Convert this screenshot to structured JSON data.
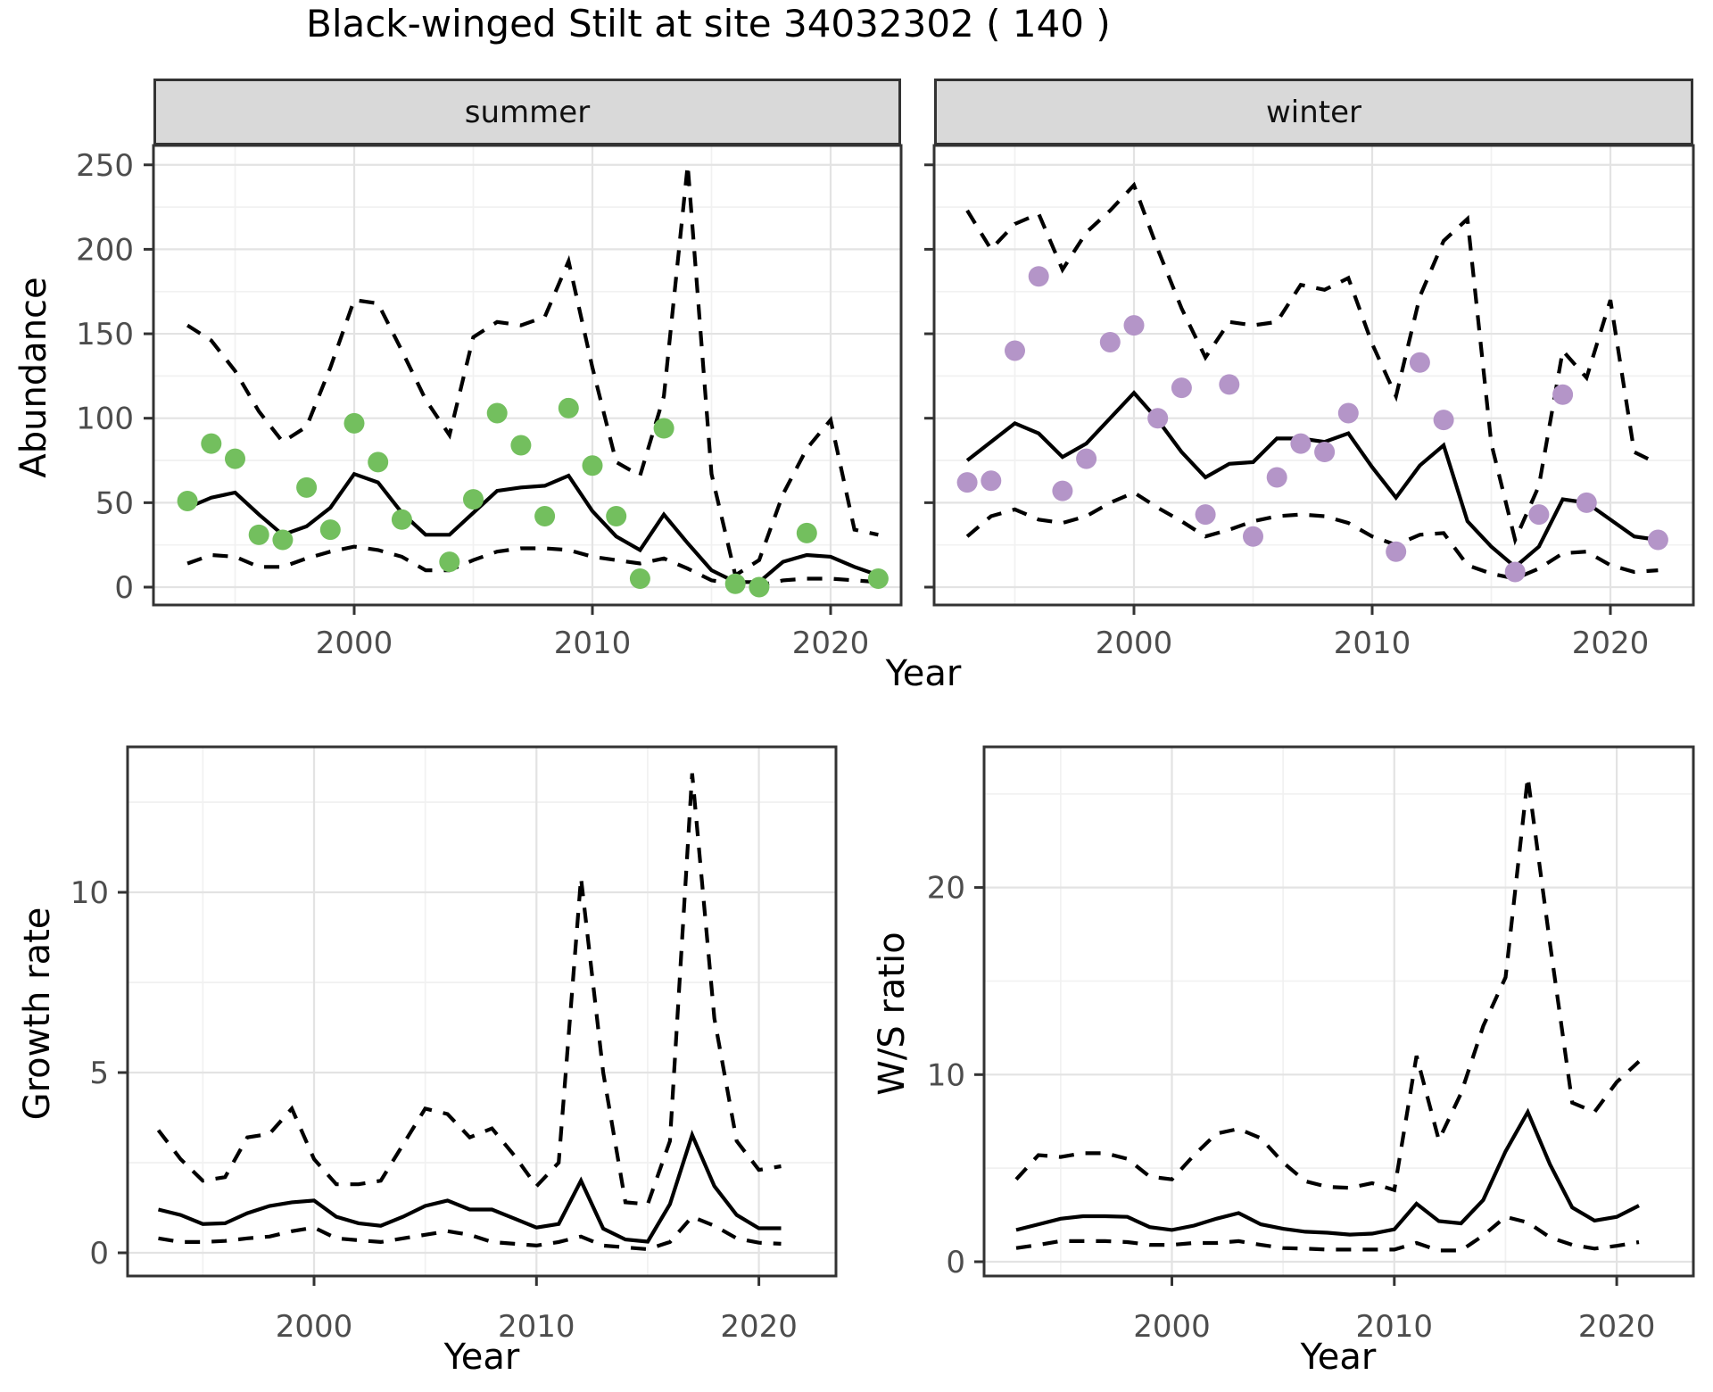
{
  "title": "Black-winged Stilt at site 34032302 ( 140 )",
  "chart_data": [
    {
      "type": "line+scatter",
      "id": "summer",
      "facet_label": "summer",
      "xlabel": "Year",
      "ylabel": "Abundance",
      "x": [
        1993,
        1994,
        1995,
        1996,
        1997,
        1998,
        1999,
        2000,
        2001,
        2002,
        2003,
        2004,
        2005,
        2006,
        2007,
        2008,
        2009,
        2010,
        2011,
        2012,
        2013,
        2014,
        2015,
        2016,
        2017,
        2018,
        2019,
        2020,
        2021,
        2022
      ],
      "x_ticks": [
        2000,
        2010,
        2020
      ],
      "y_ticks": [
        0,
        50,
        100,
        150,
        200,
        250
      ],
      "ylim": [
        -13,
        262
      ],
      "legend": "none",
      "grid": "on",
      "series": [
        {
          "name": "upper95",
          "style": "dashed",
          "values": [
            155,
            146,
            128,
            104,
            86,
            95,
            130,
            170,
            168,
            140,
            111,
            90,
            148,
            157,
            155,
            160,
            193,
            130,
            74,
            66,
            113,
            250,
            67,
            7,
            16,
            55,
            82,
            99,
            34,
            31
          ]
        },
        {
          "name": "mean",
          "style": "solid",
          "values": [
            47,
            53,
            56,
            43,
            31,
            36,
            47,
            67,
            62,
            44,
            31,
            31,
            44,
            57,
            59,
            60,
            66,
            45,
            30,
            22,
            43,
            26,
            10,
            3,
            3,
            15,
            19,
            18,
            12,
            7
          ]
        },
        {
          "name": "lower95",
          "style": "dashed",
          "values": [
            14,
            19,
            18,
            12,
            12,
            17,
            21,
            24,
            22,
            18,
            10,
            10,
            16,
            21,
            23,
            23,
            22,
            18,
            16,
            14,
            17,
            11,
            4,
            2,
            1,
            4,
            5,
            5,
            4,
            3
          ]
        }
      ],
      "points": [
        [
          1993,
          51
        ],
        [
          1994,
          85
        ],
        [
          1995,
          76
        ],
        [
          1996,
          31
        ],
        [
          1997,
          28
        ],
        [
          1998,
          59
        ],
        [
          1999,
          34
        ],
        [
          2000,
          97
        ],
        [
          2001,
          74
        ],
        [
          2002,
          40
        ],
        [
          2004,
          15
        ],
        [
          2005,
          52
        ],
        [
          2006,
          103
        ],
        [
          2007,
          84
        ],
        [
          2008,
          42
        ],
        [
          2009,
          106
        ],
        [
          2010,
          72
        ],
        [
          2011,
          42
        ],
        [
          2012,
          5
        ],
        [
          2013,
          94
        ],
        [
          2016,
          2
        ],
        [
          2017,
          0
        ],
        [
          2019,
          32
        ],
        [
          2022,
          5
        ]
      ],
      "point_color": "#73BF5E"
    },
    {
      "type": "line+scatter",
      "id": "winter",
      "facet_label": "winter",
      "xlabel": "Year",
      "ylabel": "Abundance",
      "x": [
        1993,
        1994,
        1995,
        1996,
        1997,
        1998,
        1999,
        2000,
        2001,
        2002,
        2003,
        2004,
        2005,
        2006,
        2007,
        2008,
        2009,
        2010,
        2011,
        2012,
        2013,
        2014,
        2015,
        2016,
        2017,
        2018,
        2019,
        2020,
        2021,
        2022
      ],
      "x_ticks": [
        2000,
        2010,
        2020
      ],
      "y_ticks": [
        0,
        50,
        100,
        150,
        200,
        250
      ],
      "ylim": [
        -13,
        262
      ],
      "legend": "none",
      "grid": "on",
      "series": [
        {
          "name": "upper95",
          "style": "dashed",
          "values": [
            223,
            200,
            215,
            221,
            188,
            210,
            223,
            238,
            200,
            165,
            136,
            157,
            155,
            157,
            179,
            176,
            183,
            144,
            113,
            172,
            205,
            218,
            85,
            28,
            60,
            140,
            124,
            170,
            80,
            73
          ]
        },
        {
          "name": "mean",
          "style": "solid",
          "values": [
            75,
            86,
            97,
            91,
            77,
            85,
            100,
            115,
            99,
            80,
            65,
            73,
            74,
            88,
            88,
            86,
            91,
            71,
            53,
            72,
            84,
            39,
            24,
            12,
            24,
            52,
            50,
            40,
            30,
            28
          ]
        },
        {
          "name": "lower95",
          "style": "dashed",
          "values": [
            30,
            42,
            46,
            40,
            38,
            42,
            50,
            56,
            47,
            39,
            30,
            34,
            39,
            42,
            43,
            42,
            38,
            30,
            25,
            31,
            32,
            13,
            8,
            5,
            11,
            20,
            21,
            13,
            9,
            10
          ]
        }
      ],
      "points": [
        [
          1993,
          62
        ],
        [
          1994,
          63
        ],
        [
          1995,
          140
        ],
        [
          1996,
          184
        ],
        [
          1997,
          57
        ],
        [
          1998,
          76
        ],
        [
          1999,
          145
        ],
        [
          2000,
          155
        ],
        [
          2001,
          100
        ],
        [
          2002,
          118
        ],
        [
          2003,
          43
        ],
        [
          2004,
          120
        ],
        [
          2005,
          30
        ],
        [
          2006,
          65
        ],
        [
          2007,
          85
        ],
        [
          2008,
          80
        ],
        [
          2009,
          103
        ],
        [
          2011,
          21
        ],
        [
          2012,
          133
        ],
        [
          2013,
          99
        ],
        [
          2016,
          9
        ],
        [
          2017,
          43
        ],
        [
          2018,
          114
        ],
        [
          2019,
          50
        ],
        [
          2022,
          28
        ]
      ],
      "point_color": "#B495C8"
    },
    {
      "type": "line",
      "id": "growth",
      "facet_label": "",
      "xlabel": "Year",
      "ylabel": "Growth rate",
      "x": [
        1993,
        1994,
        1995,
        1996,
        1997,
        1998,
        1999,
        2000,
        2001,
        2002,
        2003,
        2004,
        2005,
        2006,
        2007,
        2008,
        2009,
        2010,
        2011,
        2012,
        2013,
        2014,
        2015,
        2016,
        2017,
        2018,
        2019,
        2020,
        2021
      ],
      "x_ticks": [
        2000,
        2010,
        2020
      ],
      "y_ticks": [
        0,
        5,
        10
      ],
      "ylim": [
        -0.7,
        14.0
      ],
      "legend": "none",
      "grid": "on",
      "series": [
        {
          "name": "upper95",
          "style": "dashed",
          "values": [
            3.4,
            2.6,
            2.0,
            2.1,
            3.2,
            3.3,
            4.0,
            2.6,
            1.9,
            1.9,
            2.0,
            3.0,
            4.0,
            3.85,
            3.2,
            3.45,
            2.7,
            1.85,
            2.5,
            10.4,
            5.0,
            1.4,
            1.35,
            3.1,
            13.3,
            6.5,
            3.1,
            2.3,
            2.4
          ]
        },
        {
          "name": "mean",
          "style": "solid",
          "values": [
            1.2,
            1.05,
            0.8,
            0.82,
            1.1,
            1.3,
            1.4,
            1.45,
            1.0,
            0.82,
            0.75,
            1.0,
            1.3,
            1.45,
            1.2,
            1.2,
            0.95,
            0.7,
            0.8,
            2.0,
            0.67,
            0.37,
            0.31,
            1.35,
            3.27,
            1.85,
            1.05,
            0.68,
            0.68
          ]
        },
        {
          "name": "lower95",
          "style": "dashed",
          "values": [
            0.4,
            0.3,
            0.3,
            0.33,
            0.4,
            0.45,
            0.6,
            0.7,
            0.4,
            0.35,
            0.3,
            0.4,
            0.5,
            0.6,
            0.5,
            0.3,
            0.25,
            0.2,
            0.3,
            0.45,
            0.2,
            0.15,
            0.1,
            0.3,
            1.0,
            0.75,
            0.4,
            0.28,
            0.25
          ]
        }
      ],
      "points": [],
      "point_color": "#000000"
    },
    {
      "type": "line",
      "id": "ws",
      "facet_label": "",
      "xlabel": "Year",
      "ylabel": "W/S ratio",
      "x": [
        1993,
        1994,
        1995,
        1996,
        1997,
        1998,
        1999,
        2000,
        2001,
        2002,
        2003,
        2004,
        2005,
        2006,
        2007,
        2008,
        2009,
        2010,
        2011,
        2012,
        2013,
        2014,
        2015,
        2016,
        2017,
        2018,
        2019,
        2020,
        2021
      ],
      "x_ticks": [
        2000,
        2010,
        2020
      ],
      "y_ticks": [
        0,
        10,
        20
      ],
      "ylim": [
        -1.4,
        27.5
      ],
      "legend": "none",
      "grid": "on",
      "series": [
        {
          "name": "upper95",
          "style": "dashed",
          "values": [
            4.4,
            5.7,
            5.6,
            5.8,
            5.8,
            5.5,
            4.55,
            4.4,
            5.7,
            6.85,
            7.1,
            6.6,
            5.3,
            4.3,
            4.0,
            3.95,
            4.2,
            3.83,
            11.0,
            6.5,
            9.0,
            12.6,
            15.2,
            25.9,
            17.0,
            8.5,
            8.0,
            9.6,
            10.7
          ]
        },
        {
          "name": "mean",
          "style": "solid",
          "values": [
            1.7,
            2.0,
            2.3,
            2.43,
            2.43,
            2.4,
            1.85,
            1.7,
            1.93,
            2.3,
            2.6,
            2.0,
            1.76,
            1.6,
            1.55,
            1.45,
            1.5,
            1.73,
            3.1,
            2.17,
            2.05,
            3.3,
            5.9,
            8.0,
            5.2,
            2.9,
            2.2,
            2.4,
            3.0
          ]
        },
        {
          "name": "lower95",
          "style": "dashed",
          "values": [
            0.73,
            0.9,
            1.1,
            1.1,
            1.1,
            1.05,
            0.9,
            0.9,
            1.0,
            1.0,
            1.1,
            0.9,
            0.73,
            0.7,
            0.65,
            0.65,
            0.65,
            0.65,
            1.0,
            0.6,
            0.6,
            1.4,
            2.4,
            2.1,
            1.3,
            0.9,
            0.7,
            0.85,
            1.05
          ]
        }
      ],
      "points": [],
      "point_color": "#000000"
    }
  ]
}
